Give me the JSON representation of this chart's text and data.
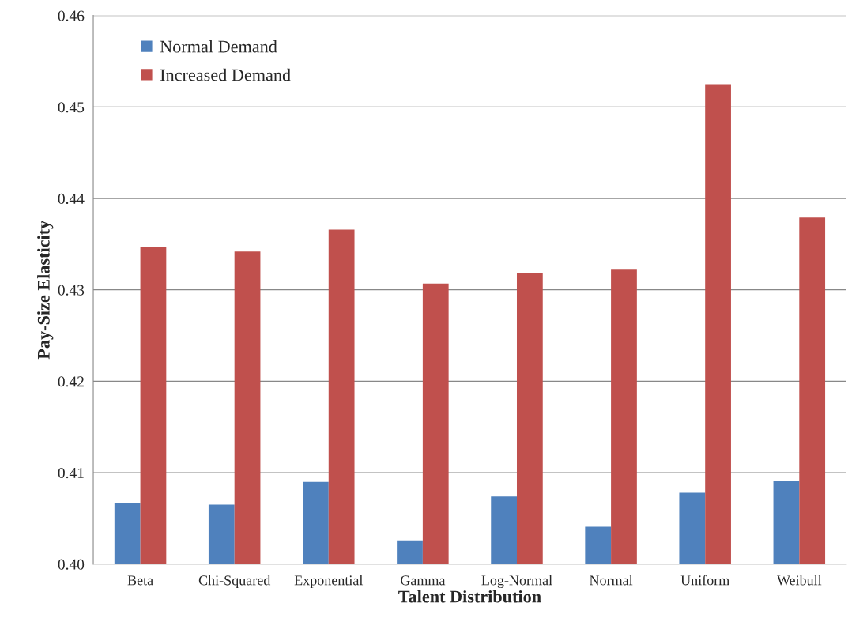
{
  "chart_data": {
    "type": "bar",
    "xlabel": "Talent Distribution",
    "ylabel": "Pay-Size Elasticity",
    "categories": [
      "Beta",
      "Chi-Squared",
      "Exponential",
      "Gamma",
      "Log-Normal",
      "Normal",
      "Uniform",
      "Weibull"
    ],
    "series": [
      {
        "name": "Normal Demand",
        "color": "#4f81bd",
        "values": [
          0.4067,
          0.4065,
          0.409,
          0.4026,
          0.4074,
          0.4041,
          0.4078,
          0.4091
        ]
      },
      {
        "name": "Increased Demand",
        "color": "#c0504d",
        "values": [
          0.4347,
          0.4342,
          0.4366,
          0.4307,
          0.4318,
          0.4323,
          0.4525,
          0.4379
        ]
      }
    ],
    "ylim": [
      0.4,
      0.46
    ],
    "yticks": [
      {
        "value": 0.4,
        "label": "0.40"
      },
      {
        "value": 0.41,
        "label": "0.41"
      },
      {
        "value": 0.42,
        "label": "0.42"
      },
      {
        "value": 0.43,
        "label": "0.43"
      },
      {
        "value": 0.44,
        "label": "0.44"
      },
      {
        "value": 0.45,
        "label": "0.45"
      },
      {
        "value": 0.46,
        "label": "0.46"
      }
    ],
    "grid": "y",
    "legend": "top left"
  }
}
